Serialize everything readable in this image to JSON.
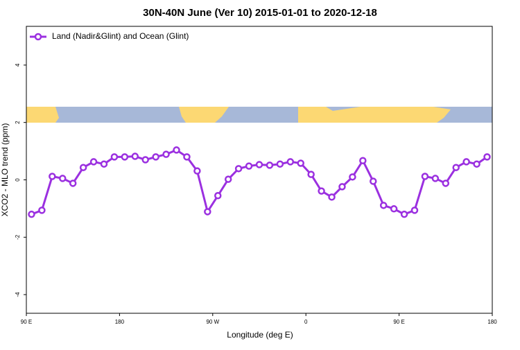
{
  "chart_data": {
    "type": "line",
    "title": "30N-40N June (Ver 10)   2015-01-01 to 2020-12-18",
    "x_label": "Longitude (deg E)",
    "y_label": "XCO2 - MLO trend (ppm)",
    "x": [
      95,
      105,
      115,
      125,
      135,
      145,
      155,
      165,
      175,
      185,
      195,
      205,
      215,
      225,
      235,
      245,
      255,
      265,
      275,
      285,
      295,
      305,
      315,
      325,
      335,
      345,
      355,
      365,
      375,
      385,
      395,
      405,
      415,
      425,
      435,
      445,
      455,
      465,
      475,
      485,
      495,
      505,
      515,
      525,
      535
    ],
    "series": [
      {
        "name": "Land (Nadir&Glint) and Ocean (Glint)",
        "color": "#9b30e0",
        "values": [
          -1.2,
          -1.06,
          0.12,
          0.05,
          -0.12,
          0.43,
          0.63,
          0.55,
          0.8,
          0.8,
          0.82,
          0.7,
          0.8,
          0.89,
          1.04,
          0.8,
          0.31,
          -1.11,
          -0.55,
          0.02,
          0.39,
          0.48,
          0.53,
          0.51,
          0.55,
          0.63,
          0.58,
          0.19,
          -0.39,
          -0.6,
          -0.24,
          0.1,
          0.67,
          -0.05,
          -0.89,
          -1.01,
          -1.2,
          -1.06,
          0.12,
          0.05,
          -0.12,
          0.43,
          0.63,
          0.55,
          0.8
        ]
      }
    ],
    "xlim": [
      90,
      540
    ],
    "xticks": [
      {
        "value": 90,
        "label": "90 E"
      },
      {
        "value": 180,
        "label": "180"
      },
      {
        "value": 270,
        "label": "90 W"
      },
      {
        "value": 360,
        "label": "0"
      },
      {
        "value": 450,
        "label": "90 E"
      },
      {
        "value": 540,
        "label": "180"
      }
    ],
    "ylim": [
      -4.65,
      5.35
    ],
    "yticks": [
      -4,
      -2,
      0,
      2,
      4
    ],
    "legend": "top-left"
  }
}
